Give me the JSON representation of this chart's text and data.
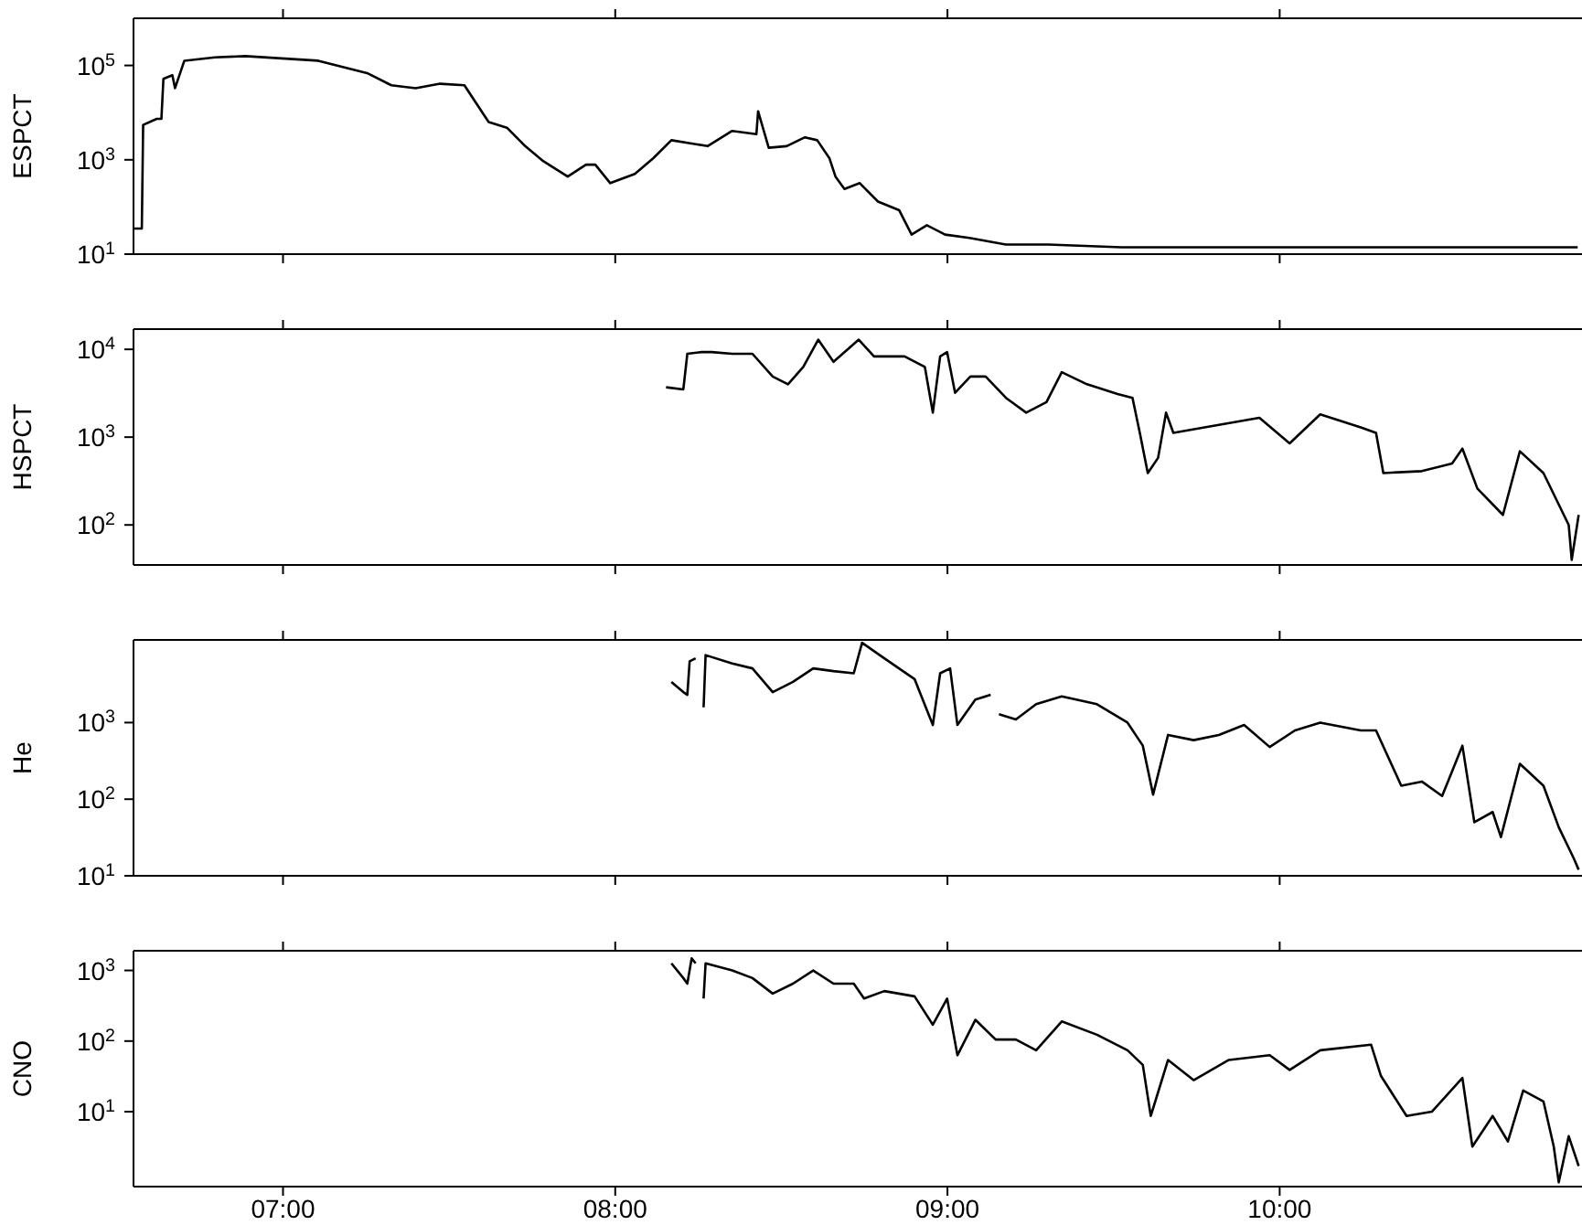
{
  "chart_data": [
    {
      "type": "line",
      "ylabel": "ESPCT",
      "log": "y",
      "grid": false,
      "tick_labels": "y",
      "color": "#000000",
      "xlim": [
        6.55,
        10.91
      ],
      "xticks": [
        {
          "value": 7,
          "label": null
        },
        {
          "value": 8,
          "label": null
        },
        {
          "value": 9,
          "label": null
        },
        {
          "value": 10,
          "label": null
        }
      ],
      "ylim": [
        10,
        1000000
      ],
      "yticks": [
        {
          "value": 10,
          "label": "10$^{1}$"
        },
        {
          "value": 1000,
          "label": "10$^{3}$"
        },
        {
          "value": 100000,
          "label": "10$^{5}$"
        }
      ],
      "x": [
        6.553,
        6.575,
        6.579,
        6.62,
        6.634,
        6.64,
        6.667,
        6.675,
        6.703,
        6.795,
        6.886,
        6.996,
        7.106,
        7.253,
        7.326,
        7.399,
        7.473,
        7.546,
        7.619,
        7.674,
        7.729,
        7.784,
        7.857,
        7.912,
        7.94,
        7.985,
        8.059,
        8.114,
        8.169,
        8.278,
        8.352,
        8.425,
        8.43,
        8.462,
        8.516,
        8.571,
        8.608,
        8.645,
        8.663,
        8.69,
        8.736,
        8.791,
        8.855,
        8.892,
        8.938,
        8.993,
        9.066,
        9.176,
        9.304,
        9.524,
        9.799,
        10.165,
        10.53,
        10.897
      ],
      "values": [
        35,
        35,
        5500,
        7400,
        7400,
        52000,
        62000,
        33000,
        126000,
        148000,
        158000,
        141000,
        126000,
        69000,
        38000,
        33000,
        41000,
        38000,
        6300,
        4800,
        1950,
        930,
        440,
        790,
        790,
        320,
        500,
        1070,
        2600,
        1950,
        4100,
        3500,
        10700,
        1800,
        1950,
        3000,
        2600,
        1070,
        440,
        240,
        320,
        130,
        85,
        26,
        41,
        26,
        22,
        16,
        16,
        14,
        14,
        14,
        14,
        14
      ]
    },
    {
      "type": "line",
      "ylabel": "HSPCT",
      "log": "y",
      "grid": false,
      "tick_labels": "y",
      "color": "#000000",
      "xlim": [
        6.55,
        10.91
      ],
      "xticks": [
        {
          "value": 7,
          "label": null
        },
        {
          "value": 8,
          "label": null
        },
        {
          "value": 9,
          "label": null
        },
        {
          "value": 10,
          "label": null
        }
      ],
      "ylim": [
        35,
        17000
      ],
      "yticks": [
        {
          "value": 100,
          "label": "10$^{2}$"
        },
        {
          "value": 1000,
          "label": "10$^{3}$"
        },
        {
          "value": 10000,
          "label": "10$^{4}$"
        }
      ],
      "x": [
        8.153,
        8.205,
        8.217,
        8.26,
        8.29,
        8.352,
        8.413,
        8.474,
        8.52,
        8.566,
        8.611,
        8.657,
        8.733,
        8.779,
        8.871,
        8.932,
        8.956,
        8.978,
        8.999,
        9.023,
        9.069,
        9.115,
        9.176,
        9.237,
        9.298,
        9.344,
        9.42,
        9.512,
        9.557,
        9.579,
        9.603,
        9.634,
        9.658,
        9.68,
        9.817,
        9.939,
        10.03,
        10.122,
        10.244,
        10.29,
        10.312,
        10.428,
        10.519,
        10.55,
        10.595,
        10.672,
        10.723,
        10.794,
        10.87,
        10.879,
        10.9
      ],
      "values": [
        3700,
        3500,
        8900,
        9300,
        9300,
        8900,
        8900,
        4900,
        4000,
        6300,
        12900,
        7200,
        12900,
        8300,
        8300,
        6300,
        1900,
        8300,
        9300,
        3200,
        4900,
        4900,
        2800,
        1900,
        2500,
        5500,
        4000,
        3100,
        2800,
        1120,
        390,
        580,
        1900,
        1120,
        1380,
        1660,
        850,
        1820,
        1290,
        1120,
        390,
        410,
        500,
        740,
        260,
        130,
        690,
        390,
        100,
        40,
        130
      ]
    },
    {
      "type": "line",
      "ylabel": "He",
      "log": "y",
      "grid": false,
      "tick_labels": "y",
      "color": "#000000",
      "xlim": [
        6.55,
        10.91
      ],
      "xticks": [
        {
          "value": 7,
          "label": null
        },
        {
          "value": 8,
          "label": null
        },
        {
          "value": 9,
          "label": null
        },
        {
          "value": 10,
          "label": null
        }
      ],
      "ylim": [
        10,
        12000
      ],
      "yticks": [
        {
          "value": 10,
          "label": "10$^{1}$"
        },
        {
          "value": 100,
          "label": "10$^{2}$"
        },
        {
          "value": 1000,
          "label": "10$^{3}$"
        }
      ],
      "x": [
        8.169,
        8.205,
        8.217,
        8.224,
        8.242,
        8.25,
        8.266,
        8.272,
        8.352,
        8.413,
        8.474,
        8.535,
        8.596,
        8.657,
        8.718,
        8.743,
        8.81,
        8.901,
        8.956,
        8.978,
        9.008,
        9.03,
        9.084,
        9.13,
        9.14,
        9.155,
        9.206,
        9.267,
        9.344,
        9.45,
        9.542,
        9.588,
        9.619,
        9.664,
        9.741,
        9.817,
        9.893,
        9.97,
        10.046,
        10.122,
        10.244,
        10.29,
        10.366,
        10.428,
        10.489,
        10.55,
        10.586,
        10.641,
        10.666,
        10.723,
        10.794,
        10.84,
        10.885,
        10.9
      ],
      "values": [
        3400,
        2500,
        2300,
        6300,
        6900,
        null,
        1580,
        7600,
        5900,
        5100,
        2500,
        3400,
        5100,
        4700,
        4400,
        11000,
        6900,
        3700,
        930,
        4400,
        5100,
        930,
        2000,
        2300,
        null,
        1290,
        1100,
        1740,
        2200,
        1740,
        1000,
        500,
        115,
        690,
        590,
        690,
        930,
        480,
        790,
        1000,
        790,
        790,
        150,
        170,
        110,
        500,
        50,
        68,
        32,
        290,
        150,
        43,
        17,
        12
      ]
    },
    {
      "type": "line",
      "ylabel": "CNO",
      "log": "y",
      "grid": false,
      "color": "#000000",
      "xlim": [
        6.55,
        10.91
      ],
      "xticks": [
        {
          "value": 7,
          "label": "07:00"
        },
        {
          "value": 8,
          "label": "08:00"
        },
        {
          "value": 9,
          "label": "09:00"
        },
        {
          "value": 10,
          "label": "10:00"
        }
      ],
      "ylim": [
        0.87,
        1900
      ],
      "yticks": [
        {
          "value": 10,
          "label": "10$^{1}$"
        },
        {
          "value": 100,
          "label": "10$^{2}$"
        },
        {
          "value": 1000,
          "label": "10$^{3}$"
        }
      ],
      "x": [
        8.169,
        8.205,
        8.217,
        8.23,
        8.242,
        8.25,
        8.266,
        8.272,
        8.352,
        8.413,
        8.474,
        8.535,
        8.596,
        8.657,
        8.718,
        8.749,
        8.81,
        8.901,
        8.956,
        8.999,
        9.03,
        9.084,
        9.145,
        9.206,
        9.267,
        9.344,
        9.45,
        9.542,
        9.588,
        9.612,
        9.664,
        9.741,
        9.847,
        9.97,
        10.03,
        10.122,
        10.275,
        10.305,
        10.382,
        10.458,
        10.55,
        10.58,
        10.641,
        10.687,
        10.733,
        10.794,
        10.825,
        10.84,
        10.87,
        10.9
      ],
      "values": [
        1260,
        780,
        650,
        1480,
        1260,
        null,
        400,
        1260,
        1000,
        780,
        470,
        650,
        1000,
        650,
        650,
        400,
        510,
        430,
        170,
        400,
        63,
        200,
        105,
        105,
        74,
        190,
        123,
        74,
        46,
        8.7,
        54,
        28,
        54,
        63,
        39,
        74,
        89,
        32,
        8.7,
        10,
        30,
        3.2,
        8.7,
        3.8,
        20,
        14,
        3.2,
        1.0,
        4.5,
        1.7
      ]
    }
  ]
}
